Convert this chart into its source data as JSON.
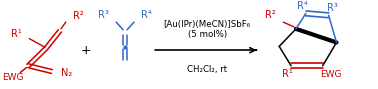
{
  "bg_color": "#ffffff",
  "red_color": "#cc0000",
  "blue_color": "#3366cc",
  "black_color": "#000000",
  "condition_line1": "[Au(IPr)(MeCN)]SbF₆",
  "condition_line2": "(5 mol%)",
  "condition_line3": "CH₂Cl₂, rt",
  "fs_label": 7.0,
  "fs_cond": 6.2
}
